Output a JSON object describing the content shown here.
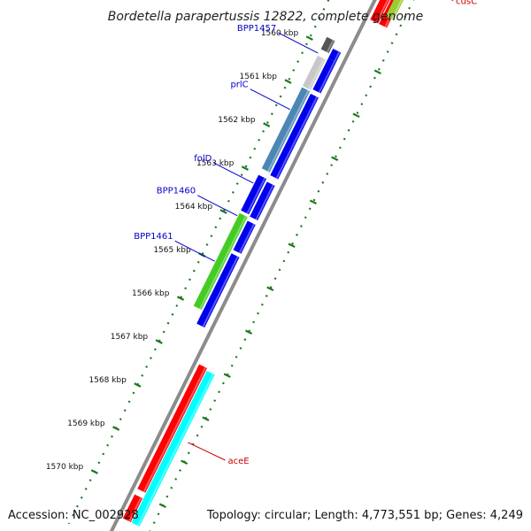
{
  "title": "Bordetella parapertussis 12822, complete genome",
  "footer": {
    "accession": "Accession: NC_002928",
    "topology": "Topology: circular; Length: 4,773,551 bp; Genes: 4,249"
  },
  "colors": {
    "backbone": "#8c8c8c",
    "tick": "#1a7a1a",
    "label_blue": "#0000cc",
    "label_red": "#cc0000",
    "cds_blue": "#0000ee",
    "cds_red": "#ff0000",
    "cds_cyan": "#00ffff",
    "cds_green": "#44cc22",
    "cds_steel": "#4c86b4",
    "cds_grey": "#c8c8c8",
    "cds_darkgrey": "#555555",
    "cds_yellowgreen": "#99cc33"
  },
  "ticks": [
    {
      "kbp": 1560,
      "label": "1560 kbp"
    },
    {
      "kbp": 1561,
      "label": "1561 kbp"
    },
    {
      "kbp": 1562,
      "label": "1562 kbp"
    },
    {
      "kbp": 1563,
      "label": "1563 kbp"
    },
    {
      "kbp": 1564,
      "label": "1564 kbp"
    },
    {
      "kbp": 1565,
      "label": "1565 kbp"
    },
    {
      "kbp": 1566,
      "label": "1566 kbp"
    },
    {
      "kbp": 1567,
      "label": "1567 kbp"
    },
    {
      "kbp": 1568,
      "label": "1568 kbp"
    },
    {
      "kbp": 1569,
      "label": "1569 kbp"
    },
    {
      "kbp": 1570,
      "label": "1570 kbp"
    }
  ],
  "features": [
    {
      "name": "",
      "track": 3,
      "start": 1556.9,
      "end": 1559.1,
      "color": "cds_red"
    },
    {
      "name": "",
      "track": 2,
      "start": 1556.9,
      "end": 1559.1,
      "color": "cds_red"
    },
    {
      "name": "",
      "track": 4,
      "start": 1557.2,
      "end": 1558.9,
      "color": "cds_yellowgreen"
    },
    {
      "name": "",
      "track": -2,
      "start": 1559.82,
      "end": 1560.1,
      "color": "cds_darkgrey"
    },
    {
      "name": "",
      "track": -2,
      "start": 1560.25,
      "end": 1560.95,
      "color": "cds_grey"
    },
    {
      "name": "",
      "track": -1,
      "start": 1559.98,
      "end": 1560.2,
      "color": "cds_blue"
    },
    {
      "name": "",
      "track": -1,
      "start": 1560.2,
      "end": 1560.92,
      "color": "cds_blue"
    },
    {
      "name": "",
      "track": -2,
      "start": 1560.98,
      "end": 1562.85,
      "color": "cds_steel"
    },
    {
      "name": "",
      "track": -1,
      "start": 1561.02,
      "end": 1562.9,
      "color": "cds_blue"
    },
    {
      "name": "",
      "track": -2,
      "start": 1563.0,
      "end": 1563.82,
      "color": "cds_blue"
    },
    {
      "name": "",
      "track": -1,
      "start": 1563.05,
      "end": 1563.85,
      "color": "cds_blue"
    },
    {
      "name": "",
      "track": -2,
      "start": 1563.88,
      "end": 1566.02,
      "color": "cds_green"
    },
    {
      "name": "",
      "track": -1,
      "start": 1563.95,
      "end": 1564.62,
      "color": "cds_blue"
    },
    {
      "name": "",
      "track": -1,
      "start": 1564.7,
      "end": 1566.32,
      "color": "cds_blue"
    },
    {
      "name": "",
      "track": 1,
      "start": 1567.05,
      "end": 1569.92,
      "color": "cds_red"
    },
    {
      "name": "",
      "track": 2,
      "start": 1567.1,
      "end": 1570.6,
      "color": "cds_cyan"
    },
    {
      "name": "",
      "track": 1,
      "start": 1570.05,
      "end": 1570.6,
      "color": "cds_red"
    }
  ],
  "labels": [
    {
      "text": "BPP1457",
      "color": "label_blue",
      "kbp": 1560.2,
      "side": "left"
    },
    {
      "text": "prlC",
      "color": "label_blue",
      "kbp": 1561.5,
      "side": "left"
    },
    {
      "text": "folD",
      "color": "label_blue",
      "kbp": 1563.2,
      "side": "left"
    },
    {
      "text": "BPP1460",
      "color": "label_blue",
      "kbp": 1563.95,
      "side": "left"
    },
    {
      "text": "BPP1461",
      "color": "label_blue",
      "kbp": 1565.0,
      "side": "left"
    },
    {
      "text": "cusC",
      "color": "label_red",
      "kbp": 1558.0,
      "side": "right"
    },
    {
      "text": "aceE",
      "color": "label_red",
      "kbp": 1568.6,
      "side": "right"
    }
  ]
}
